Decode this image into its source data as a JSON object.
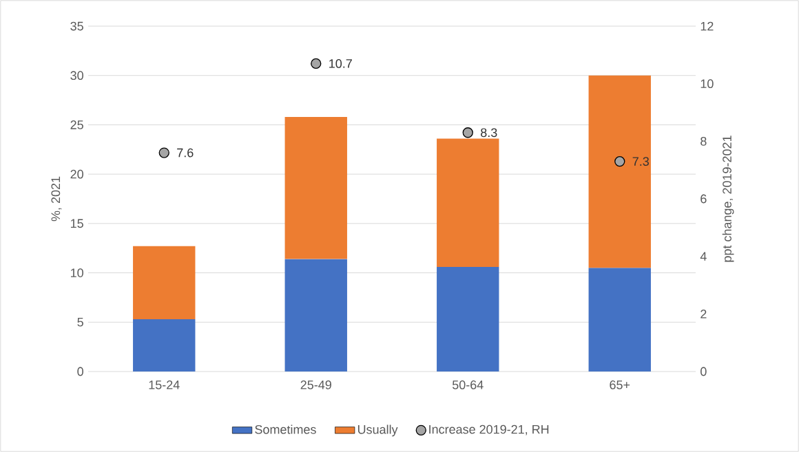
{
  "chart_data": {
    "type": "bar",
    "stacked": true,
    "categories": [
      "15-24",
      "25-49",
      "50-64",
      "65+"
    ],
    "ylabel": "%, 2021",
    "y2label": "ppt change, 2019-2021",
    "ylim": [
      0,
      35
    ],
    "yticks": [
      0,
      5,
      10,
      15,
      20,
      25,
      30,
      35
    ],
    "y2lim": [
      0,
      12
    ],
    "y2ticks": [
      0,
      2,
      4,
      6,
      8,
      10,
      12
    ],
    "grid": "y",
    "legend": "bottom",
    "series": [
      {
        "name": "Sometimes",
        "color": "#4472c4",
        "values": [
          5.3,
          11.4,
          10.6,
          10.5
        ]
      },
      {
        "name": "Usually",
        "color": "#ed7d31",
        "values": [
          7.4,
          14.4,
          13.0,
          19.5
        ]
      },
      {
        "name": "Increase 2019-21, RH",
        "type": "scatter",
        "axis": "y2",
        "marker": "circle",
        "color": "#a5a5a5",
        "values": [
          7.6,
          10.7,
          8.3,
          7.3
        ],
        "value_labels": [
          "7.6",
          "10.7",
          "8.3",
          "7.3"
        ]
      }
    ]
  }
}
